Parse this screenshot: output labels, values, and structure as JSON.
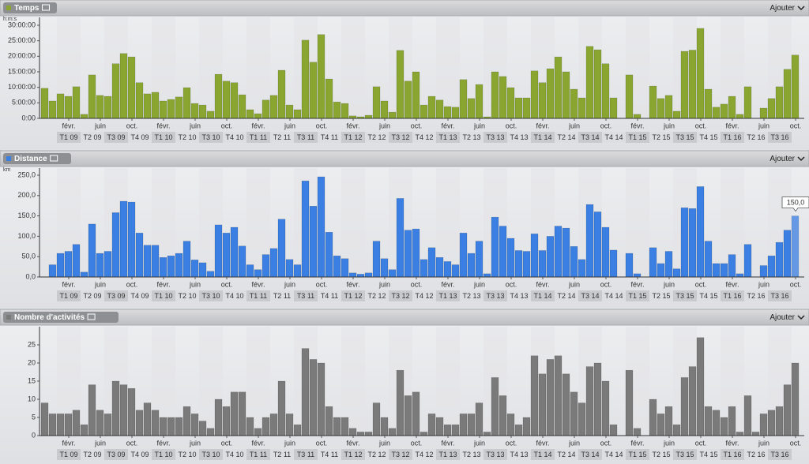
{
  "chart_data": [
    {
      "type": "bar",
      "title": "Temps",
      "action": "Ajouter",
      "unit": "h:m:s",
      "color": "#8aa631",
      "categories": [
        null,
        null,
        null,
        "févr.",
        null,
        null,
        null,
        "juin",
        null,
        null,
        null,
        "oct.",
        null,
        null,
        null,
        "févr.",
        null,
        null,
        null,
        "juin",
        null,
        null,
        null,
        "oct.",
        null,
        null,
        null,
        "févr.",
        null,
        null,
        null,
        "juin",
        null,
        null,
        null,
        "oct.",
        null,
        null,
        null,
        "févr.",
        null,
        null,
        null,
        "juin",
        null,
        null,
        null,
        "oct.",
        null,
        null,
        null,
        "févr.",
        null,
        null,
        null,
        "juin",
        null,
        null,
        null,
        "oct.",
        null,
        null,
        null,
        "févr.",
        null,
        null,
        null,
        "juin",
        null,
        null,
        null,
        "oct.",
        null,
        null,
        null,
        "févr.",
        null,
        null,
        null,
        "juin",
        null,
        null,
        null,
        "oct.",
        null,
        null,
        null,
        "févr.",
        null,
        null,
        null,
        "juin",
        null,
        null,
        null,
        "oct."
      ],
      "quarters": [
        "T1 09",
        "T2 09",
        "T3 09",
        "T4 09",
        "T1 10",
        "T2 10",
        "T3 10",
        "T4 10",
        "T1 11",
        "T2 11",
        "T3 11",
        "T4 11",
        "T1 12",
        "T2 12",
        "T3 12",
        "T4 12",
        "T1 13",
        "T2 13",
        "T3 13",
        "T4 13",
        "T1 14",
        "T2 14",
        "T3 14",
        "T4 14",
        "T1 15",
        "T2 15",
        "T3 15",
        "T4 15",
        "T1 16",
        "T2 16",
        "T3 16"
      ],
      "values": [
        9.7,
        5.6,
        7.9,
        7.1,
        10.2,
        1.3,
        14,
        7.4,
        7.1,
        17.6,
        20.9,
        19.8,
        11.5,
        7.9,
        8.4,
        5.6,
        6.1,
        6.9,
        9.9,
        4.8,
        4.3,
        2.3,
        14.2,
        12,
        11.5,
        7.6,
        2.8,
        1.5,
        5.9,
        7.4,
        15.5,
        4.3,
        2.8,
        25.2,
        18.1,
        27,
        12.7,
        5.3,
        4.8,
        0.8,
        0.5,
        1,
        10.2,
        5.6,
        2,
        21.9,
        12,
        15,
        4.3,
        7.1,
        5.9,
        3.8,
        3.6,
        12.5,
        6.4,
        10.9,
        0.5,
        15,
        13.5,
        9.9,
        6.6,
        6.6,
        15.3,
        11.5,
        16,
        19.8,
        15,
        9.4,
        6.6,
        23.2,
        22.1,
        17.6,
        6.6,
        0,
        14,
        1.3,
        0,
        10.4,
        6.4,
        7.4,
        2.3,
        21.6,
        22,
        29,
        9.4,
        3.6,
        4.6,
        7.1,
        1.3,
        10.2,
        0,
        3.3,
        6.4,
        10.2,
        15.8,
        20.4
      ],
      "ylim": [
        0,
        30
      ],
      "yticks": [
        {
          "value": 0,
          "label": "0:00"
        },
        {
          "value": 5,
          "label": "5:00:00"
        },
        {
          "value": 10,
          "label": "10:00:00"
        },
        {
          "value": 15,
          "label": "15:00:00"
        },
        {
          "value": 20,
          "label": "20:00:00"
        },
        {
          "value": 25,
          "label": "25:00:00"
        },
        {
          "value": 30,
          "label": "30:00:00"
        }
      ]
    },
    {
      "type": "bar",
      "title": "Distance",
      "action": "Ajouter",
      "unit": "km",
      "color": "#3b7fe3",
      "categories": [
        null,
        null,
        null,
        "févr.",
        null,
        null,
        null,
        "juin",
        null,
        null,
        null,
        "oct.",
        null,
        null,
        null,
        "févr.",
        null,
        null,
        null,
        "juin",
        null,
        null,
        null,
        "oct.",
        null,
        null,
        null,
        "févr.",
        null,
        null,
        null,
        "juin",
        null,
        null,
        null,
        "oct.",
        null,
        null,
        null,
        "févr.",
        null,
        null,
        null,
        "juin",
        null,
        null,
        null,
        "oct.",
        null,
        null,
        null,
        "févr.",
        null,
        null,
        null,
        "juin",
        null,
        null,
        null,
        "oct.",
        null,
        null,
        null,
        "févr.",
        null,
        null,
        null,
        "juin",
        null,
        null,
        null,
        "oct.",
        null,
        null,
        null,
        "févr.",
        null,
        null,
        null,
        "juin",
        null,
        null,
        null,
        "oct.",
        null,
        null,
        null,
        "févr.",
        null,
        null,
        null,
        "juin",
        null,
        null,
        null,
        "oct."
      ],
      "quarters": [
        "T1 09",
        "T2 09",
        "T3 09",
        "T4 09",
        "T1 10",
        "T2 10",
        "T3 10",
        "T4 10",
        "T1 11",
        "T2 11",
        "T3 11",
        "T4 11",
        "T1 12",
        "T2 12",
        "T3 12",
        "T4 12",
        "T1 13",
        "T2 13",
        "T3 13",
        "T4 13",
        "T1 14",
        "T2 14",
        "T3 14",
        "T4 14",
        "T1 15",
        "T2 15",
        "T3 15",
        "T4 15",
        "T1 16",
        "T2 16",
        "T3 16"
      ],
      "values": [
        0,
        30,
        58,
        63,
        80,
        12,
        130,
        58,
        63,
        158,
        186,
        184,
        108,
        78,
        78,
        48,
        52,
        58,
        88,
        42,
        35,
        14,
        128,
        108,
        122,
        76,
        30,
        18,
        55,
        70,
        142,
        43,
        30,
        236,
        174,
        246,
        110,
        52,
        45,
        10,
        7,
        10,
        88,
        45,
        18,
        193,
        115,
        118,
        43,
        72,
        48,
        38,
        30,
        108,
        58,
        88,
        8,
        147,
        125,
        95,
        65,
        63,
        106,
        65,
        100,
        125,
        120,
        75,
        43,
        178,
        160,
        122,
        66,
        0,
        58,
        8,
        0,
        72,
        33,
        63,
        20,
        170,
        168,
        222,
        88,
        33,
        33,
        55,
        8,
        80,
        0,
        28,
        52,
        85,
        115,
        150
      ],
      "value_labels": [
        null,
        null,
        null,
        null,
        null,
        null,
        null,
        null,
        null,
        null,
        null,
        null,
        null,
        null,
        null,
        null,
        null,
        null,
        null,
        null,
        null,
        null,
        null,
        null,
        null,
        null,
        null,
        null,
        null,
        null,
        null,
        null,
        null,
        null,
        null,
        null,
        null,
        null,
        null,
        null,
        null,
        null,
        null,
        null,
        null,
        null,
        null,
        null,
        null,
        null,
        null,
        null,
        null,
        null,
        null,
        null,
        null,
        null,
        null,
        null,
        null,
        null,
        null,
        null,
        null,
        null,
        null,
        null,
        null,
        null,
        null,
        null,
        null,
        null,
        null,
        null,
        null,
        null,
        null,
        null,
        null,
        null,
        null,
        null,
        null,
        null,
        null,
        null,
        null,
        null,
        null,
        null,
        null,
        null,
        null,
        "150,0"
      ],
      "ylim": [
        0,
        250
      ],
      "yticks": [
        {
          "value": 0,
          "label": "0,0"
        },
        {
          "value": 50,
          "label": "50,0"
        },
        {
          "value": 100,
          "label": "100,0"
        },
        {
          "value": 150,
          "label": "150,0"
        },
        {
          "value": 200,
          "label": "200,0"
        },
        {
          "value": 250,
          "label": "250,0"
        }
      ]
    },
    {
      "type": "bar",
      "title": "Nombre d'activités",
      "action": "Ajouter",
      "color": "#7a7a7a",
      "categories": [
        null,
        null,
        null,
        "févr.",
        null,
        null,
        null,
        "juin",
        null,
        null,
        null,
        "oct.",
        null,
        null,
        null,
        "févr.",
        null,
        null,
        null,
        "juin",
        null,
        null,
        null,
        "oct.",
        null,
        null,
        null,
        "févr.",
        null,
        null,
        null,
        "juin",
        null,
        null,
        null,
        "oct.",
        null,
        null,
        null,
        "févr.",
        null,
        null,
        null,
        "juin",
        null,
        null,
        null,
        "oct.",
        null,
        null,
        null,
        "févr.",
        null,
        null,
        null,
        "juin",
        null,
        null,
        null,
        "oct.",
        null,
        null,
        null,
        "févr.",
        null,
        null,
        null,
        "juin",
        null,
        null,
        null,
        "oct.",
        null,
        null,
        null,
        "févr.",
        null,
        null,
        null,
        "juin",
        null,
        null,
        null,
        "oct.",
        null,
        null,
        null,
        "févr.",
        null,
        null,
        null,
        "juin",
        null,
        null,
        null,
        "oct."
      ],
      "quarters": [
        "T1 09",
        "T2 09",
        "T3 09",
        "T4 09",
        "T1 10",
        "T2 10",
        "T3 10",
        "T4 10",
        "T1 11",
        "T2 11",
        "T3 11",
        "T4 11",
        "T1 12",
        "T2 12",
        "T3 12",
        "T4 12",
        "T1 13",
        "T2 13",
        "T3 13",
        "T4 13",
        "T1 14",
        "T2 14",
        "T3 14",
        "T4 14",
        "T1 15",
        "T2 15",
        "T3 15",
        "T4 15",
        "T1 16",
        "T2 16",
        "T3 16"
      ],
      "values": [
        9,
        6,
        6,
        6,
        7,
        3,
        14,
        7,
        6,
        15,
        14,
        13,
        7,
        9,
        7,
        5,
        5,
        5,
        8,
        6,
        4,
        2,
        10,
        8,
        12,
        12,
        5,
        2,
        5,
        6,
        15,
        6,
        3,
        24,
        21,
        20,
        8,
        5,
        5,
        2,
        1,
        1,
        9,
        5,
        2,
        18,
        11,
        12,
        1,
        6,
        5,
        3,
        3,
        6,
        6,
        9,
        1,
        16,
        11,
        6,
        3,
        5,
        22,
        17,
        21,
        22,
        17,
        12,
        9,
        19,
        20,
        15,
        3,
        0,
        18,
        2,
        0,
        10,
        6,
        8,
        3,
        16,
        19,
        27,
        8,
        7,
        5,
        8,
        1,
        11,
        1,
        6,
        7,
        8,
        14,
        20
      ],
      "ylim": [
        0,
        25
      ],
      "yticks": [
        0,
        5,
        10,
        15,
        20,
        25
      ]
    }
  ]
}
